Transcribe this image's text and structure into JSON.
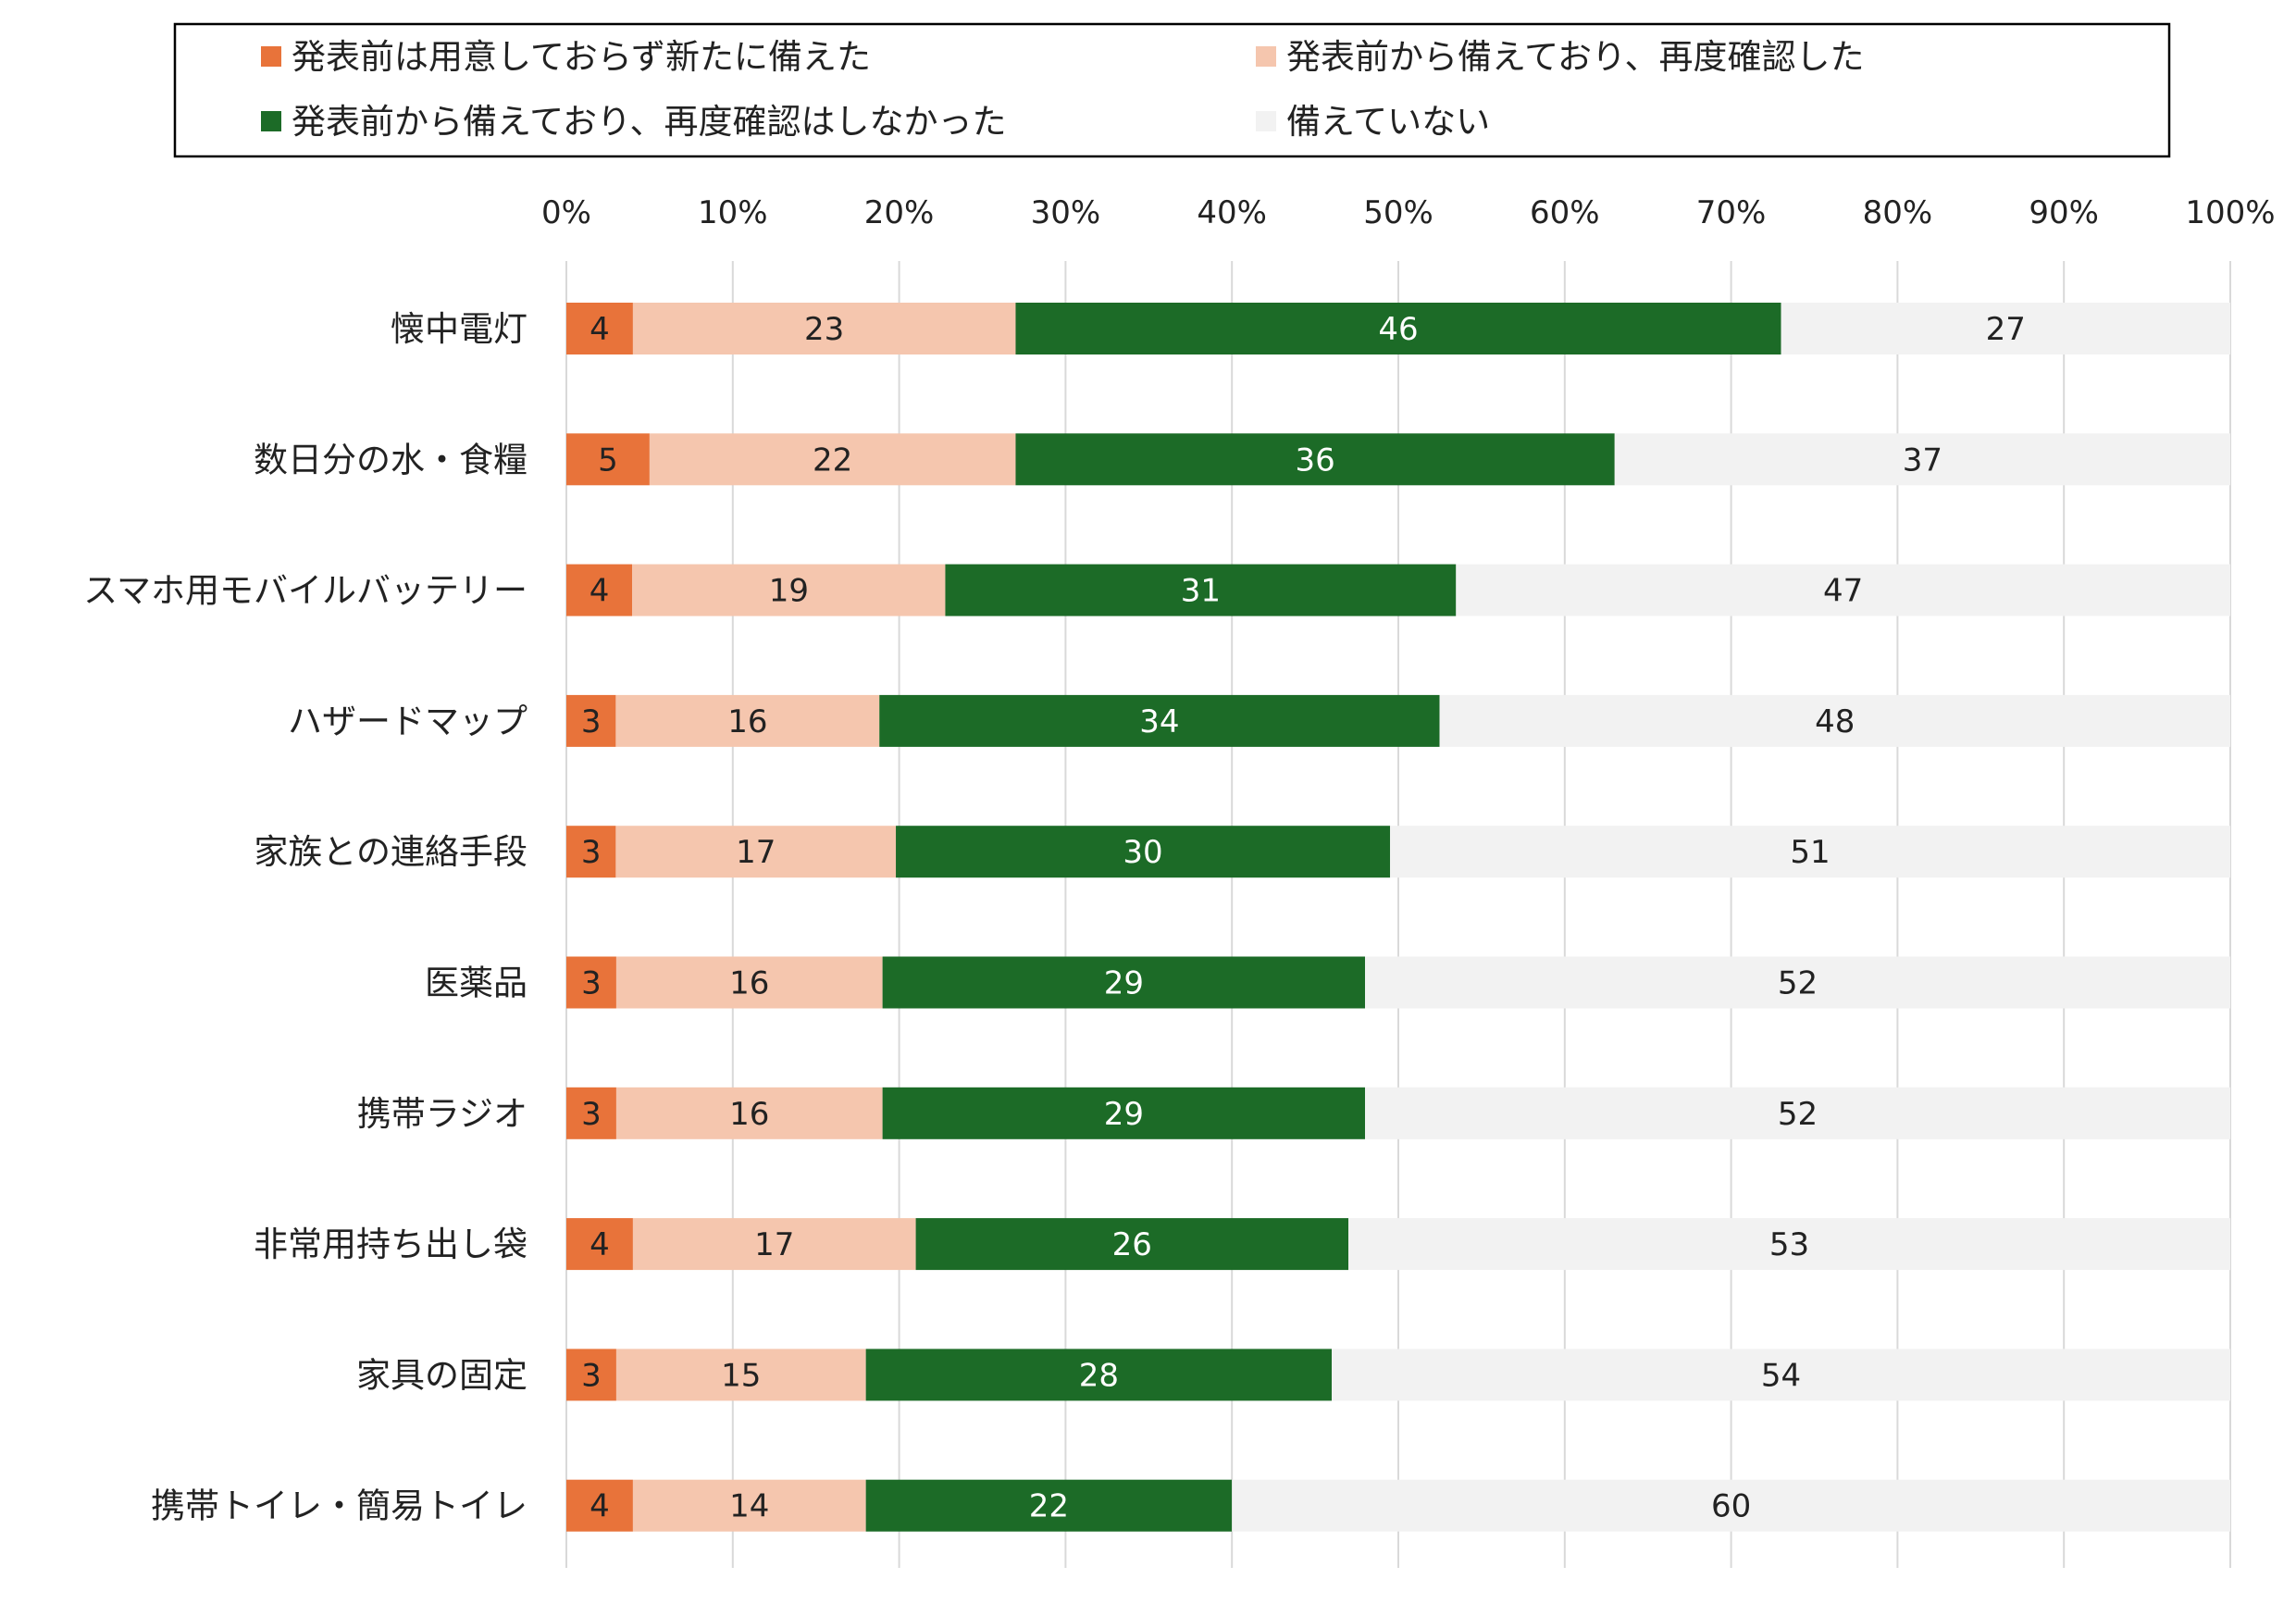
{
  "chart_data": {
    "type": "bar",
    "orientation": "horizontal",
    "stacked": true,
    "percent_stacked": true,
    "title": "",
    "xlabel": "",
    "ylabel": "",
    "xlim": [
      0,
      100
    ],
    "x_ticks": [
      "0%",
      "10%",
      "20%",
      "30%",
      "40%",
      "50%",
      "60%",
      "70%",
      "80%",
      "90%",
      "100%"
    ],
    "x_axis_position": "top",
    "grid": true,
    "legend_position": "top",
    "categories": [
      "懐中電灯",
      "数日分の水・食糧",
      "スマホ用モバイルバッテリー",
      "ハザードマップ",
      "家族との連絡手段",
      "医薬品",
      "携帯ラジオ",
      "非常用持ち出し袋",
      "家具の固定",
      "携帯トイレ・簡易トイレ"
    ],
    "series": [
      {
        "name": "発表前は用意しておらず新たに備えた",
        "color": "#E8733A",
        "label_color": "#222222",
        "values": [
          4,
          5,
          4,
          3,
          3,
          3,
          3,
          4,
          3,
          4
        ]
      },
      {
        "name": "発表前から備えており、再度確認した",
        "color": "#F5C6AE",
        "label_color": "#222222",
        "values": [
          23,
          22,
          19,
          16,
          17,
          16,
          16,
          17,
          15,
          14
        ]
      },
      {
        "name": "発表前から備えており、再度確認はしなかった",
        "color": "#1C6B27",
        "label_color": "#FFFFFF",
        "values": [
          46,
          36,
          31,
          34,
          30,
          29,
          29,
          26,
          28,
          22
        ]
      },
      {
        "name": "備えていない",
        "color": "#F2F2F2",
        "label_color": "#222222",
        "values": [
          27,
          37,
          47,
          48,
          51,
          52,
          52,
          53,
          54,
          60
        ]
      }
    ]
  }
}
